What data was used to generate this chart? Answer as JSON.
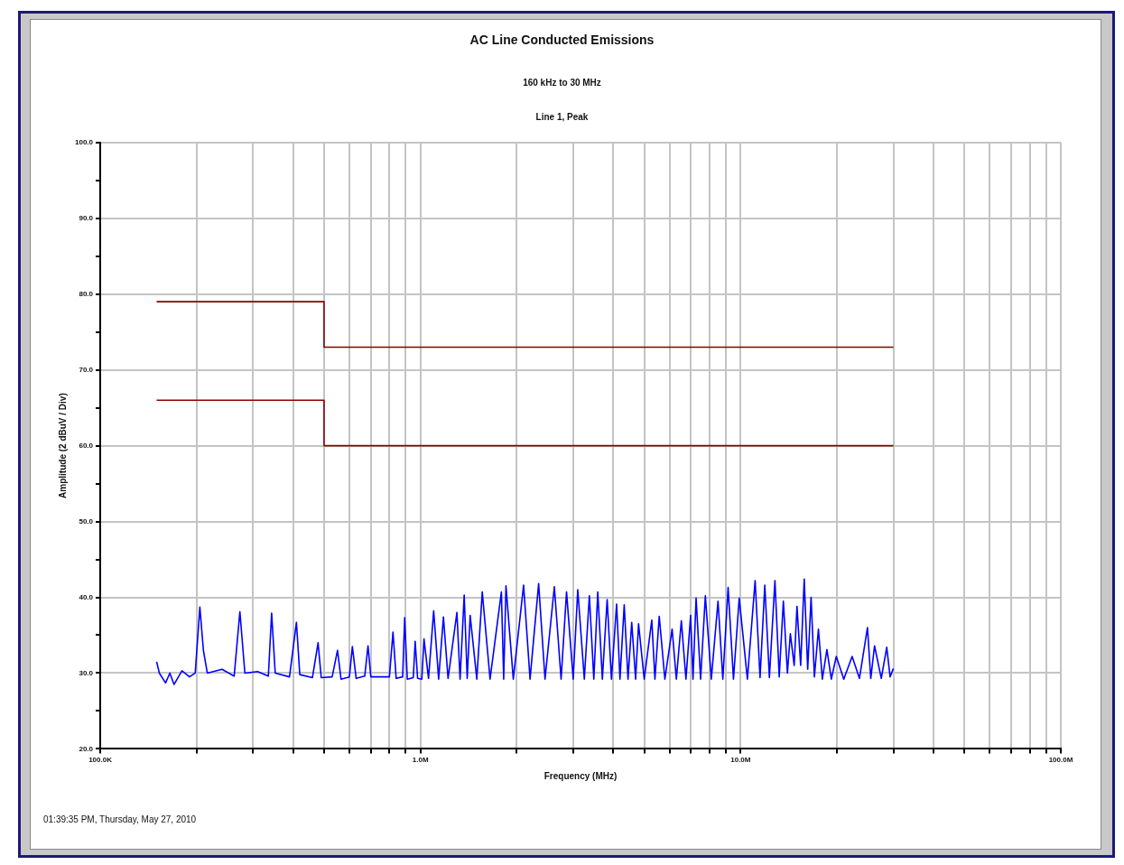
{
  "chart_data": {
    "type": "line",
    "title": "AC Line Conducted Emissions",
    "subtitle": "160 kHz to 30 MHz",
    "xlabel": "Frequency (MHz)",
    "ylabel": "Amplitude (2 dBuV / Div)",
    "annotations": [
      "Line 1, Peak",
      "01:39:35 PM, Thursday, May 27, 2010"
    ],
    "log": "x",
    "grid": true,
    "legend": false,
    "marker": "none",
    "line_style": "solid",
    "xlim": [
      100000,
      100000000
    ],
    "ylim": [
      20,
      100
    ],
    "xticks": [
      {
        "value": 100000,
        "label": "100.0K"
      },
      {
        "value": 200000,
        "label": null
      },
      {
        "value": 300000,
        "label": null
      },
      {
        "value": 400000,
        "label": null
      },
      {
        "value": 500000,
        "label": null
      },
      {
        "value": 600000,
        "label": null
      },
      {
        "value": 700000,
        "label": null
      },
      {
        "value": 800000,
        "label": null
      },
      {
        "value": 900000,
        "label": null
      },
      {
        "value": 1000000,
        "label": "1.0M"
      },
      {
        "value": 2000000,
        "label": null
      },
      {
        "value": 3000000,
        "label": null
      },
      {
        "value": 4000000,
        "label": null
      },
      {
        "value": 5000000,
        "label": null
      },
      {
        "value": 6000000,
        "label": null
      },
      {
        "value": 7000000,
        "label": null
      },
      {
        "value": 8000000,
        "label": null
      },
      {
        "value": 9000000,
        "label": null
      },
      {
        "value": 10000000,
        "label": "10.0M"
      },
      {
        "value": 20000000,
        "label": null
      },
      {
        "value": 30000000,
        "label": null
      },
      {
        "value": 40000000,
        "label": null
      },
      {
        "value": 50000000,
        "label": null
      },
      {
        "value": 60000000,
        "label": null
      },
      {
        "value": 70000000,
        "label": null
      },
      {
        "value": 80000000,
        "label": null
      },
      {
        "value": 90000000,
        "label": null
      },
      {
        "value": 100000000,
        "label": "100.0M"
      }
    ],
    "yticks": [
      {
        "value": 20,
        "label": "20.0"
      },
      {
        "value": 25,
        "label": null
      },
      {
        "value": 30,
        "label": "30.0"
      },
      {
        "value": 35,
        "label": null
      },
      {
        "value": 40,
        "label": "40.0"
      },
      {
        "value": 45,
        "label": null
      },
      {
        "value": 50,
        "label": "50.0"
      },
      {
        "value": 55,
        "label": null
      },
      {
        "value": 60,
        "label": "60.0"
      },
      {
        "value": 65,
        "label": null
      },
      {
        "value": 70,
        "label": "70.0"
      },
      {
        "value": 75,
        "label": null
      },
      {
        "value": 80,
        "label": "80.0"
      },
      {
        "value": 85,
        "label": null
      },
      {
        "value": 90,
        "label": "90.0"
      },
      {
        "value": 95,
        "label": null
      },
      {
        "value": 100,
        "label": "100.0"
      }
    ],
    "series": [
      {
        "color": "#8b0000",
        "x": [
          150000,
          500000,
          500000,
          30000000
        ],
        "values": [
          79,
          79,
          73,
          73
        ]
      },
      {
        "color": "#8b0000",
        "x": [
          150000,
          500000,
          500000,
          30000000
        ],
        "values": [
          66,
          66,
          60,
          60
        ]
      },
      {
        "color": "#0000ff",
        "x": [
          150000,
          153000,
          160000,
          165000,
          170000,
          180000,
          190000,
          198000,
          204700,
          210000,
          216000,
          240000,
          262000,
          273000,
          283000,
          310000,
          335000,
          343000,
          352000,
          390000,
          410000,
          420000,
          460000,
          479000,
          490000,
          530000,
          551000,
          565000,
          600000,
          613000,
          630000,
          670000,
          686000,
          700000,
          800000,
          821000,
          840000,
          880000,
          893000,
          910000,
          950000,
          963000,
          980000,
          1010000,
          1026000,
          1060000,
          1100000,
          1140000,
          1180000,
          1220000,
          1300000,
          1330000,
          1370000,
          1400000,
          1430000,
          1500000,
          1560000,
          1650000,
          1790000,
          1820000,
          1850000,
          1950000,
          2100000,
          2200000,
          2340000,
          2450000,
          2620000,
          2750000,
          2860000,
          3000000,
          3100000,
          3250000,
          3370000,
          3480000,
          3580000,
          3700000,
          3830000,
          3950000,
          4100000,
          4200000,
          4330000,
          4450000,
          4570000,
          4700000,
          4800000,
          5000000,
          5280000,
          5400000,
          5570000,
          5800000,
          6110000,
          6300000,
          6530000,
          6750000,
          6980000,
          7100000,
          7260000,
          7500000,
          7760000,
          8100000,
          8500000,
          8800000,
          9140000,
          9500000,
          9900000,
          10500000,
          11100000,
          11500000,
          11900000,
          12300000,
          12800000,
          13200000,
          13600000,
          14000000,
          14300000,
          14700000,
          15000000,
          15400000,
          15800000,
          16200000,
          16600000,
          17000000,
          17500000,
          18000000,
          18600000,
          19200000,
          19900000,
          21000000,
          22300000,
          23500000,
          24900000,
          25500000,
          26200000,
          27500000,
          28600000,
          29300000,
          30000000
        ],
        "values": [
          31.5,
          30,
          28.7,
          30,
          28.5,
          30.3,
          29.5,
          30,
          38.7,
          33,
          30,
          30.5,
          29.6,
          38.1,
          30,
          30.2,
          29.6,
          37.9,
          30,
          29.5,
          36.7,
          29.8,
          29.4,
          34,
          29.4,
          29.5,
          33,
          29.2,
          29.5,
          33.5,
          29.3,
          29.6,
          33.6,
          29.5,
          29.5,
          35.4,
          29.3,
          29.5,
          37.3,
          29.2,
          29.4,
          34.2,
          29.3,
          29.2,
          34.5,
          29.3,
          38.2,
          29.2,
          37.4,
          29.3,
          38,
          29.2,
          40.3,
          29.3,
          37.6,
          29.2,
          40.7,
          29.2,
          40.7,
          29.2,
          41.5,
          29.2,
          41.6,
          29.2,
          41.8,
          29.2,
          41.4,
          29.2,
          40.7,
          29.2,
          41,
          29.2,
          40.2,
          29.2,
          40.7,
          29.2,
          39.7,
          29.2,
          39.1,
          29.2,
          39,
          29.2,
          36.7,
          29.2,
          36.5,
          29.2,
          37,
          29.2,
          37.5,
          29.2,
          35.8,
          29.2,
          36.9,
          29.2,
          37.6,
          29.2,
          39.9,
          29.2,
          40.2,
          29.2,
          39.5,
          29.2,
          41.3,
          29.2,
          39.9,
          29.2,
          42.2,
          29.4,
          41.6,
          29.4,
          42.2,
          29.5,
          39.5,
          30,
          35.2,
          31,
          38.8,
          31,
          42.4,
          30.5,
          40,
          29.5,
          35.8,
          29.2,
          33.1,
          29.2,
          32.2,
          29.2,
          32.2,
          29.3,
          36,
          29.3,
          33.6,
          29.3,
          33.4,
          29.5,
          30.6
        ]
      }
    ]
  }
}
